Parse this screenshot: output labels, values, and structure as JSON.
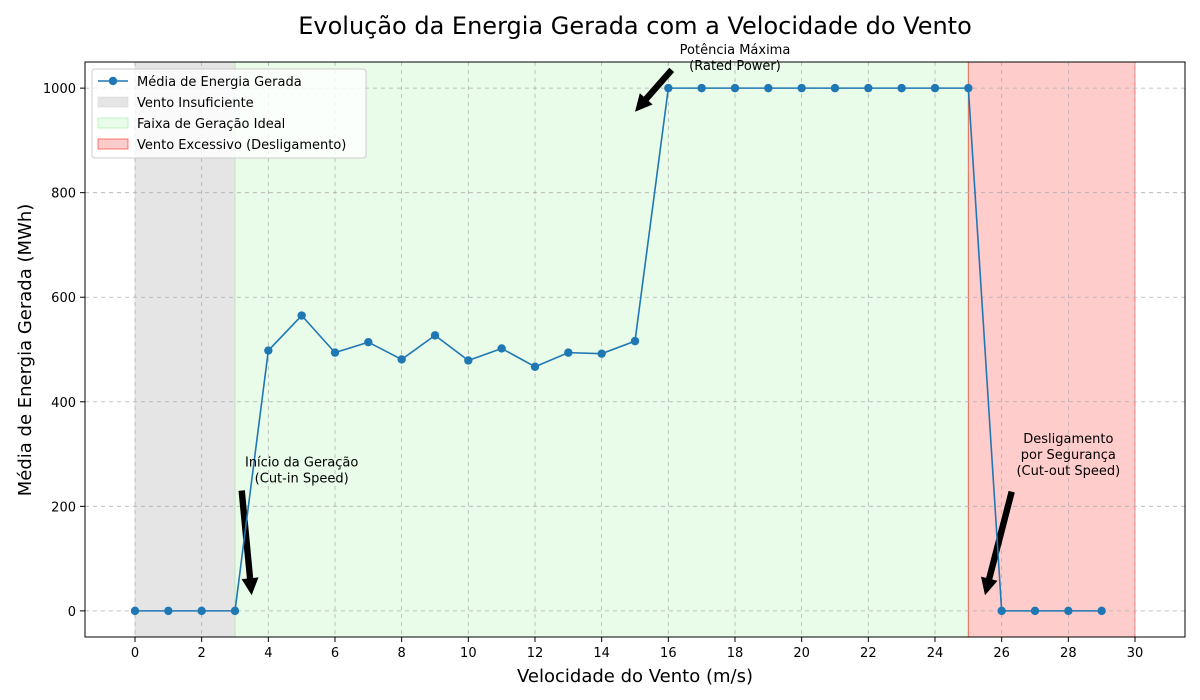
{
  "chart_data": {
    "type": "line",
    "title": "Evolução da Energia Gerada com a Velocidade do Vento",
    "xlabel": "Velocidade do Vento (m/s)",
    "ylabel": "Média de Energia Gerada (MWh)",
    "xlim": [
      -1.5,
      31.5
    ],
    "ylim": [
      -50,
      1050
    ],
    "xticks": [
      0,
      2,
      4,
      6,
      8,
      10,
      12,
      14,
      16,
      18,
      20,
      22,
      24,
      26,
      28,
      30
    ],
    "yticks": [
      0,
      200,
      400,
      600,
      800,
      1000
    ],
    "grid": true,
    "legend_position": "top-left",
    "series": [
      {
        "name": "Média de Energia Gerada",
        "color": "#1f77b4",
        "marker": "circle",
        "x": [
          0,
          1,
          2,
          3,
          4,
          5,
          6,
          7,
          8,
          9,
          10,
          11,
          12,
          13,
          14,
          15,
          16,
          17,
          18,
          19,
          20,
          21,
          22,
          23,
          24,
          25,
          26,
          27,
          28,
          29
        ],
        "y": [
          0,
          0,
          0,
          0,
          498,
          565,
          494,
          514,
          481,
          527,
          479,
          502,
          467,
          494,
          492,
          516,
          1000,
          1000,
          1000,
          1000,
          1000,
          1000,
          1000,
          1000,
          1000,
          1000,
          0,
          0,
          0,
          0
        ]
      }
    ],
    "regions": [
      {
        "name": "Vento Insuficiente",
        "x0": 0,
        "x1": 3,
        "color": "#d3d3d3",
        "opacity": 0.6
      },
      {
        "name": "Faixa de Geração Ideal",
        "x0": 3,
        "x1": 25,
        "color": "#90ee90",
        "opacity": 0.2
      },
      {
        "name": "Vento Excessivo (Desligamento)",
        "x0": 25,
        "x1": 30,
        "color": "#ff0000",
        "opacity": 0.2
      }
    ],
    "annotations": [
      {
        "lines": [
          "Início da Geração",
          "(Cut-in Speed)"
        ],
        "text_x": 5,
        "text_y": 270,
        "arrow_x": 3.5,
        "arrow_y": 30,
        "tail_x": 3.2,
        "tail_y": 230
      },
      {
        "lines": [
          "Potência Máxima",
          "(Rated Power)"
        ],
        "text_x": 18,
        "text_y": 1060,
        "arrow_x": 15.0,
        "arrow_y": 955,
        "tail_x": 16.1,
        "tail_y": 1035
      },
      {
        "lines": [
          "Desligamento",
          "por Segurança",
          "(Cut-out Speed)"
        ],
        "text_x": 28,
        "text_y": 300,
        "arrow_x": 25.5,
        "arrow_y": 30,
        "tail_x": 26.3,
        "tail_y": 228
      }
    ]
  }
}
